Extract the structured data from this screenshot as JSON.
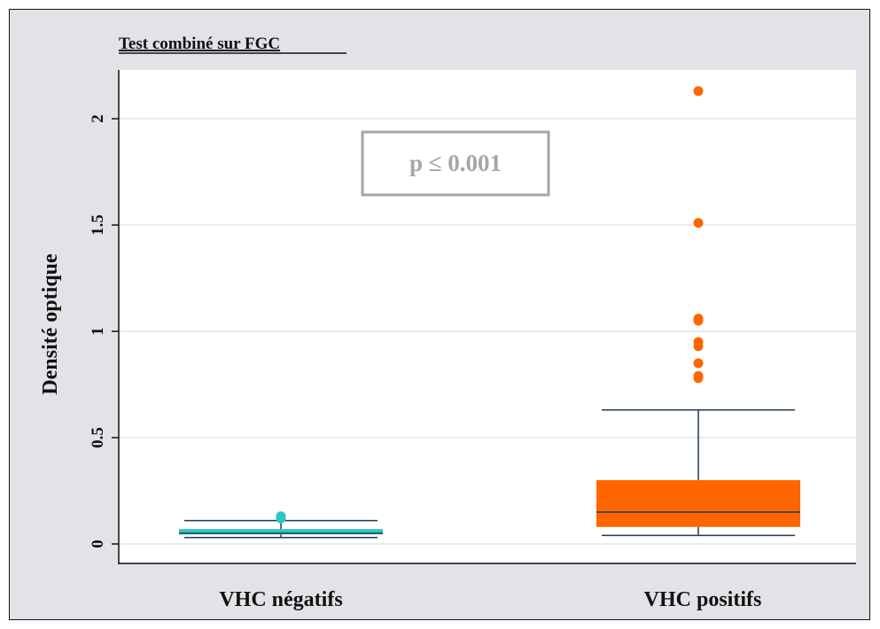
{
  "chart_data": {
    "type": "box",
    "title": "Test combiné sur FGC",
    "xlabel": "",
    "ylabel": "Densité optique",
    "ylim": [
      -0.1,
      2.25
    ],
    "yticks": [
      0,
      0.5,
      1,
      1.5,
      2
    ],
    "ytick_labels": [
      "0",
      "0.5",
      "1",
      "1.5",
      "2"
    ],
    "grid": true,
    "annotation": "p ≤  0.001",
    "categories": [
      "VHC négatifs",
      "VHC positifs"
    ],
    "boxes": [
      {
        "name": "VHC négatifs",
        "color": "#2ec4c6",
        "whisker_low": 0.03,
        "q1": 0.045,
        "median": 0.05,
        "q3": 0.07,
        "whisker_high": 0.11,
        "outliers": [
          0.12,
          0.13
        ]
      },
      {
        "name": "VHC positifs",
        "color": "#ff6600",
        "whisker_low": 0.04,
        "q1": 0.08,
        "median": 0.15,
        "q3": 0.3,
        "whisker_high": 0.63,
        "outliers": [
          0.78,
          0.79,
          0.85,
          0.93,
          0.95,
          1.05,
          1.06,
          1.51,
          2.13
        ]
      }
    ],
    "colors": {
      "frame_bg": "#e1e3e6",
      "plot_bg": "#ffffff",
      "grid": "#dfe6ea",
      "whisker": "#1f3b57",
      "annotation_border": "#a6a6a6",
      "annotation_text": "#a6a6a6"
    }
  }
}
